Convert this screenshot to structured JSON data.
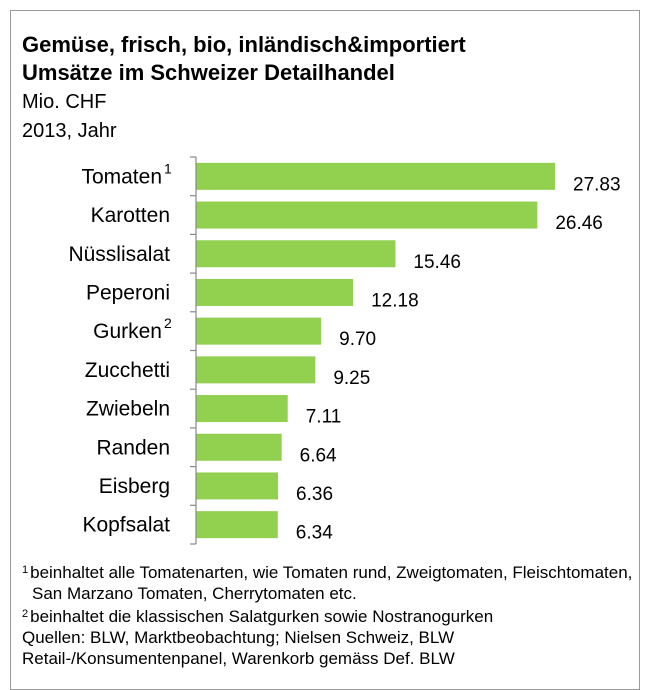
{
  "chart_data": {
    "type": "barh",
    "title": "Gemüse, frisch, bio, inländisch&importiert",
    "subtitle": "Umsätze im Schweizer Detailhandel",
    "unit": "Mio. CHF",
    "period": "2013, Jahr",
    "categories": [
      "Tomaten",
      "Karotten",
      "Nüsslisalat",
      "Peperoni",
      "Gurken",
      "Zucchetti",
      "Zwiebeln",
      "Randen",
      "Eisberg",
      "Kopfsalat"
    ],
    "category_marks": [
      "1",
      null,
      null,
      null,
      "2",
      null,
      null,
      null,
      null,
      null
    ],
    "values": [
      27.83,
      26.46,
      15.46,
      12.18,
      9.7,
      9.25,
      7.11,
      6.64,
      6.36,
      6.34
    ],
    "value_labels": [
      "27.83",
      "26.46",
      "15.46",
      "12.18",
      "9.70",
      "9.25",
      "7.11",
      "6.64",
      "6.36",
      "6.34"
    ],
    "color": "#92d050",
    "xlim": [
      0,
      30
    ],
    "footnotes": [
      {
        "mark": "1",
        "text": "beinhaltet alle Tomatenarten, wie Tomaten rund, Zweigtomaten, Fleischtomaten, San Marzano Tomaten, Cherrytomaten etc."
      },
      {
        "mark": "2",
        "text": "beinhaltet die klassischen Salatgurken sowie Nostranogurken"
      }
    ],
    "source": "Quellen: BLW, Marktbeobachtung; Nielsen Schweiz, BLW Retail-/Konsumentenpanel, Warenkorb gemäss Def. BLW"
  }
}
